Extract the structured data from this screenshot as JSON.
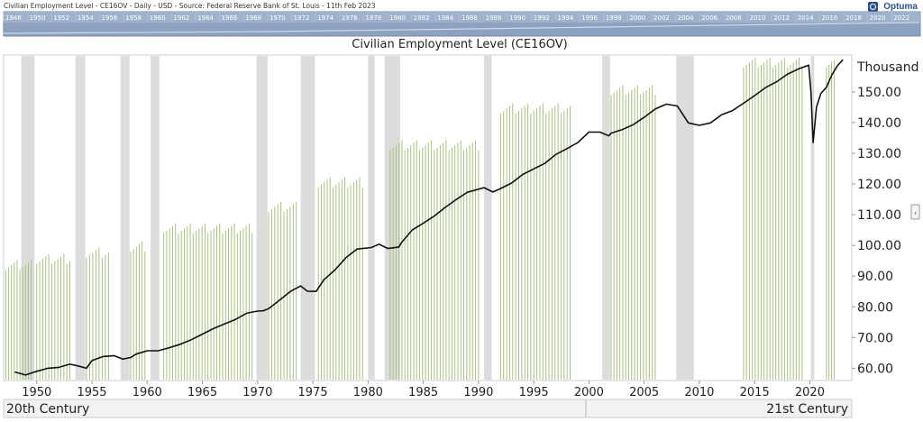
{
  "header": {
    "info": "Civilian Employment Level - CE16OV - Daily - USD - Source: Federal Reserve Bank of St. Louis - 11th Feb 2023",
    "logo": "Optuma"
  },
  "timeline": {
    "labels": [
      "1948",
      "1950",
      "1952",
      "1954",
      "1956",
      "1958",
      "1960",
      "1962",
      "1964",
      "1966",
      "1968",
      "1970",
      "1972",
      "1974",
      "1976",
      "1978",
      "1980",
      "1982",
      "1984",
      "1986",
      "1988",
      "1990",
      "1992",
      "1994",
      "1996",
      "1998",
      "2000",
      "2002",
      "2004",
      "2006",
      "2008",
      "2010",
      "2012",
      "2014",
      "2016",
      "2018",
      "2020",
      "2022"
    ]
  },
  "colors": {
    "line": "#111111",
    "volume_bar": "#a9c07e",
    "recession_band": "#dcdcdc",
    "timeline_bg": "#8da2c0",
    "century_bar_bg": "#f2f2f2"
  },
  "chart_data": {
    "type": "line",
    "title": "Civilian Employment Level (CE16OV)",
    "ylabel": "Thousand",
    "yticks": [
      "60.00",
      "70.00",
      "80.00",
      "90.00",
      "100.00",
      "110.00",
      "120.00",
      "130.00",
      "140.00",
      "150.00"
    ],
    "ylim": [
      56,
      162
    ],
    "xlim": [
      1947.0,
      2023.8
    ],
    "xticks": [
      1950,
      1955,
      1960,
      1965,
      1970,
      1975,
      1980,
      1985,
      1990,
      1995,
      2000,
      2005,
      2010,
      2015,
      2020
    ],
    "grid": false,
    "series": [
      {
        "x": [
          1948,
          1949,
          1949.8,
          1950,
          1951,
          1952,
          1953,
          1953.7,
          1954.5,
          1955,
          1956,
          1957,
          1957.8,
          1958.5,
          1959,
          1960,
          1961,
          1962,
          1963,
          1964,
          1965,
          1966,
          1967,
          1968,
          1969,
          1970,
          1970.5,
          1971,
          1972,
          1973,
          1973.9,
          1974.5,
          1975.3,
          1976,
          1977,
          1978,
          1979,
          1980.3,
          1981,
          1981.8,
          1982.8,
          1983,
          1984,
          1985,
          1986,
          1987,
          1988,
          1989,
          1990.5,
          1991.3,
          1992,
          1993,
          1994,
          1995,
          1996,
          1997,
          1998,
          1999,
          2000,
          2001,
          2001.8,
          2002,
          2003,
          2004,
          2005,
          2006,
          2007,
          2008,
          2009,
          2010,
          2011,
          2012,
          2013,
          2014,
          2015,
          2016,
          2017,
          2018,
          2019,
          2019.9,
          2020.1,
          2020.3,
          2020.6,
          2021,
          2021.5,
          2022,
          2022.5,
          2023
        ],
        "y": [
          58.8,
          57.8,
          58.8,
          59.0,
          60.0,
          60.3,
          61.3,
          60.8,
          60.0,
          62.5,
          63.8,
          64.1,
          63.0,
          63.5,
          64.6,
          65.7,
          65.7,
          66.7,
          67.8,
          69.3,
          71.1,
          72.9,
          74.4,
          75.9,
          77.9,
          78.6,
          78.7,
          79.4,
          82.2,
          85.1,
          86.8,
          85.1,
          85.0,
          88.8,
          92.0,
          96.0,
          98.8,
          99.3,
          100.4,
          99.0,
          99.5,
          100.8,
          105.0,
          107.2,
          109.6,
          112.4,
          115.0,
          117.3,
          118.8,
          117.4,
          118.5,
          120.3,
          123.1,
          124.9,
          126.7,
          129.6,
          131.5,
          133.5,
          136.9,
          136.9,
          135.7,
          136.5,
          137.7,
          139.3,
          141.7,
          144.4,
          146.0,
          145.4,
          139.9,
          139.1,
          139.9,
          142.5,
          143.9,
          146.3,
          148.8,
          151.4,
          153.3,
          155.8,
          157.5,
          158.7,
          150.0,
          133.5,
          145.0,
          149.5,
          151.5,
          155.5,
          158.5,
          160.5
        ]
      }
    ]
  },
  "bottom_bar": {
    "left_label": "20th Century",
    "right_label": "21st Century"
  }
}
